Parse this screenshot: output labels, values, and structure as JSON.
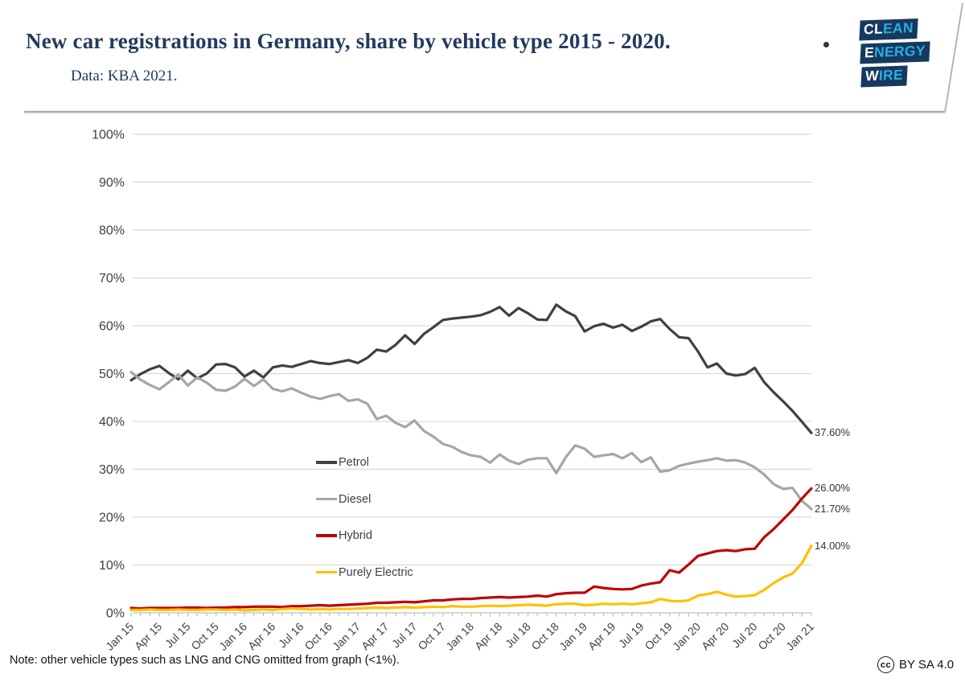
{
  "header": {
    "title": "New car registrations in Germany, share by vehicle type 2015 - 2020.",
    "subtitle": "Data: KBA 2021.",
    "logo_rows": [
      {
        "white": "CL",
        "blue": "EAN"
      },
      {
        "white": "E",
        "blue": "NERGY"
      },
      {
        "white": "W",
        "blue": "IRE"
      }
    ]
  },
  "footer": {
    "note": "Note: other vehicle types such as LNG and CNG omitted from graph (<1%).",
    "license_icon": "cc",
    "license_text": "BY SA 4.0"
  },
  "colors": {
    "title_navy": "#223a5e",
    "logo_navy": "#16395f",
    "logo_cyan": "#29abe2",
    "axis_text": "#404040",
    "gridline": "#d9d9d9",
    "axis_line": "#bfbfbf",
    "header_rule": "#adadad"
  },
  "chart_data": {
    "type": "line",
    "title": "New car registrations in Germany, share by vehicle type 2015 - 2020.",
    "x_start": "Jan 15",
    "x_end": "Jan 21",
    "x_interval": "monthly",
    "months_total": 73,
    "x_tick_every_months": 3,
    "x_tick_labels": [
      "Jan 15",
      "Apr 15",
      "Jul 15",
      "Oct 15",
      "Jan 16",
      "Apr 16",
      "Jul 16",
      "Oct 16",
      "Jan 17",
      "Apr 17",
      "Jul 17",
      "Oct 17",
      "Jan 18",
      "Apr 18",
      "Jul 18",
      "Oct 18",
      "Jan 19",
      "Apr 19",
      "Jul 19",
      "Oct 19",
      "Jan 20",
      "Apr 20",
      "Jul 20",
      "Oct 20",
      "Jan 21"
    ],
    "ylim": [
      0,
      100
    ],
    "y_tick_step": 10,
    "y_tick_format": "percent",
    "grid": true,
    "legend_position": "inside-center-left",
    "series": [
      {
        "name": "Petrol",
        "color": "#404040",
        "end_label": "37.60%",
        "values": [
          48.6,
          49.9,
          50.9,
          51.6,
          50.1,
          48.8,
          50.6,
          49.0,
          50.0,
          51.9,
          52.0,
          51.3,
          49.4,
          50.6,
          49.2,
          51.3,
          51.7,
          51.4,
          52.0,
          52.6,
          52.2,
          52.0,
          52.4,
          52.8,
          52.2,
          53.3,
          55.0,
          54.6,
          56.0,
          58.0,
          56.2,
          58.3,
          59.7,
          61.2,
          61.5,
          61.7,
          61.9,
          62.2,
          62.9,
          63.9,
          62.1,
          63.7,
          62.6,
          61.3,
          61.2,
          64.4,
          63.0,
          62.0,
          58.8,
          59.9,
          60.4,
          59.6,
          60.2,
          58.9,
          59.8,
          60.9,
          61.4,
          59.3,
          57.6,
          57.4,
          54.6,
          51.3,
          52.1,
          50.0,
          49.6,
          49.9,
          51.2,
          48.2,
          46.1,
          44.2,
          42.2,
          39.9,
          37.6
        ]
      },
      {
        "name": "Diesel",
        "color": "#a6a6a6",
        "end_label": "21.70%",
        "values": [
          50.3,
          48.7,
          47.6,
          46.7,
          48.2,
          49.8,
          47.5,
          49.2,
          48.1,
          46.6,
          46.4,
          47.3,
          48.9,
          47.4,
          48.8,
          46.8,
          46.3,
          46.9,
          46.0,
          45.2,
          44.7,
          45.3,
          45.7,
          44.3,
          44.6,
          43.7,
          40.5,
          41.2,
          39.7,
          38.8,
          40.2,
          38.0,
          36.8,
          35.3,
          34.7,
          33.6,
          32.9,
          32.6,
          31.4,
          33.1,
          31.8,
          31.1,
          32.0,
          32.3,
          32.3,
          29.2,
          32.5,
          35.0,
          34.3,
          32.6,
          32.9,
          33.2,
          32.3,
          33.4,
          31.5,
          32.5,
          29.5,
          29.8,
          30.7,
          31.2,
          31.6,
          31.9,
          32.3,
          31.8,
          31.9,
          31.4,
          30.4,
          28.9,
          26.9,
          25.9,
          26.1,
          23.4,
          21.7
        ]
      },
      {
        "name": "Hybrid",
        "color": "#c00000",
        "end_label": "26.00%",
        "values": [
          1.0,
          0.9,
          1.0,
          1.0,
          1.0,
          1.0,
          1.1,
          1.1,
          1.0,
          1.1,
          1.1,
          1.2,
          1.2,
          1.3,
          1.3,
          1.3,
          1.2,
          1.4,
          1.4,
          1.5,
          1.6,
          1.5,
          1.6,
          1.7,
          1.8,
          1.9,
          2.1,
          2.1,
          2.2,
          2.3,
          2.2,
          2.4,
          2.6,
          2.6,
          2.8,
          2.9,
          2.9,
          3.1,
          3.2,
          3.3,
          3.2,
          3.3,
          3.4,
          3.6,
          3.4,
          3.9,
          4.1,
          4.2,
          4.2,
          5.5,
          5.2,
          5.0,
          4.9,
          5.0,
          5.7,
          6.1,
          6.4,
          8.9,
          8.4,
          10.1,
          11.9,
          12.4,
          12.9,
          13.1,
          12.9,
          13.3,
          13.4,
          15.8,
          17.5,
          19.5,
          21.5,
          23.9,
          26.0
        ]
      },
      {
        "name": "Purely Electric",
        "color": "#ffc000",
        "end_label": "14.00%",
        "values": [
          0.6,
          0.6,
          0.7,
          0.6,
          0.6,
          0.7,
          0.6,
          0.6,
          0.7,
          0.7,
          0.6,
          0.7,
          0.5,
          0.6,
          0.7,
          0.6,
          0.8,
          0.9,
          0.8,
          0.7,
          0.8,
          0.7,
          0.8,
          0.8,
          0.9,
          1.0,
          1.1,
          1.0,
          1.1,
          1.2,
          1.1,
          1.2,
          1.3,
          1.2,
          1.4,
          1.3,
          1.3,
          1.4,
          1.5,
          1.4,
          1.5,
          1.6,
          1.7,
          1.6,
          1.5,
          1.8,
          1.9,
          1.9,
          1.6,
          1.7,
          1.9,
          1.8,
          1.9,
          1.8,
          2.0,
          2.2,
          2.9,
          2.5,
          2.4,
          2.6,
          3.6,
          3.9,
          4.4,
          3.8,
          3.4,
          3.5,
          3.7,
          4.8,
          6.2,
          7.4,
          8.2,
          10.4,
          14.0
        ]
      }
    ]
  }
}
